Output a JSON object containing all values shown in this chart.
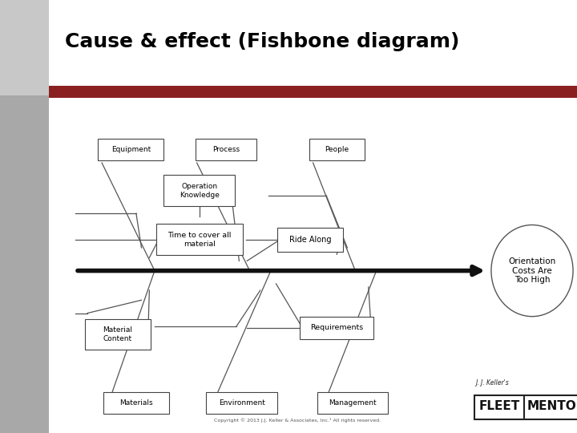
{
  "title": "Cause & effect (Fishbone diagram)",
  "title_fontsize": 18,
  "title_fontweight": "bold",
  "title_color": "#000000",
  "background_color": "#ffffff",
  "header_bar_color": "#8b2020",
  "copyright_text": "Copyright © 2013 J.J. Keller & Associates, Inc.¹ All rights reserved.",
  "effect_label": "Orientation\nCosts Are\nToo High",
  "spine_lw": 4.0,
  "spine_color": "#111111"
}
